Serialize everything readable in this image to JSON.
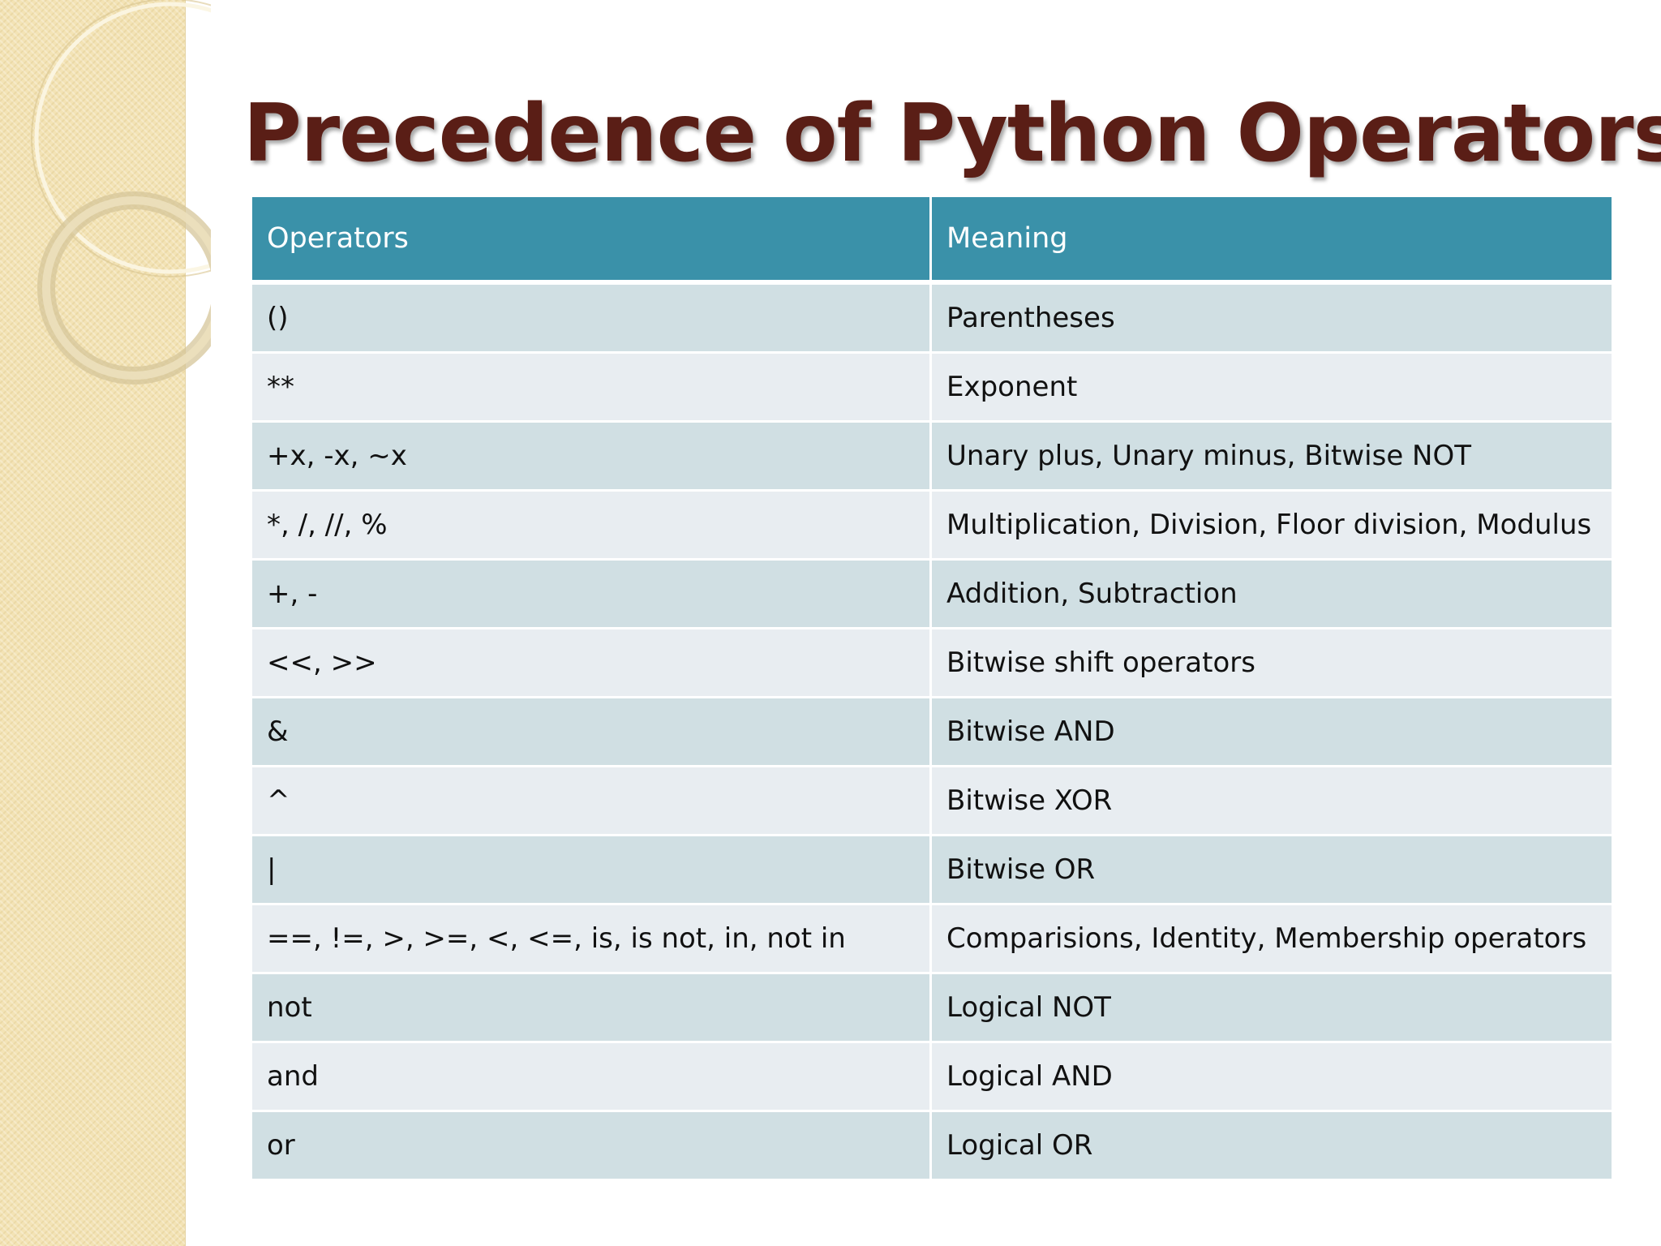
{
  "slide": {
    "title": "Precedence of Python Operators"
  },
  "table": {
    "headers": [
      "Operators",
      "Meaning"
    ],
    "rows": [
      [
        "()",
        "Parentheses"
      ],
      [
        "**",
        "Exponent"
      ],
      [
        "+x, -x, ~x",
        "Unary plus, Unary minus, Bitwise NOT"
      ],
      [
        "*, /, //, %",
        "Multiplication, Division, Floor division, Modulus"
      ],
      [
        "+, -",
        "Addition, Subtraction"
      ],
      [
        "<<, >>",
        "Bitwise shift operators"
      ],
      [
        "&",
        "Bitwise AND"
      ],
      [
        "^",
        "Bitwise XOR"
      ],
      [
        "|",
        "Bitwise OR"
      ],
      [
        "==, !=, >, >=, <, <=, is, is not, in, not in",
        "Comparisions, Identity, Membership operators"
      ],
      [
        "not",
        "Logical NOT"
      ],
      [
        "and",
        "Logical AND"
      ],
      [
        "or",
        "Logical OR"
      ]
    ]
  },
  "colors": {
    "title": "#5a1e16",
    "header_bg": "#3a91a9",
    "row_dark": "#d0dfe3",
    "row_light": "#e8edf1",
    "band": "#f3e3b5"
  }
}
